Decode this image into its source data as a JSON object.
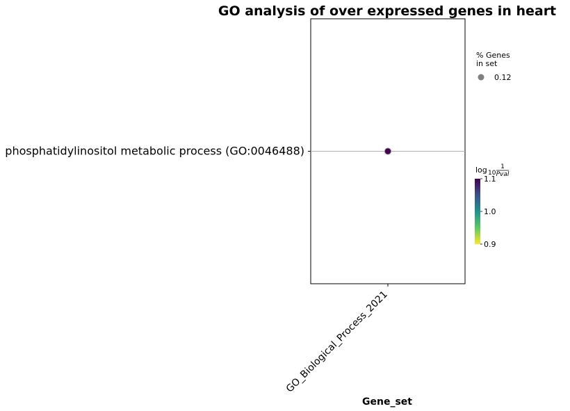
{
  "chart_data": {
    "type": "scatter",
    "title": "GO analysis of over expressed genes in heart",
    "xlabel": "Gene_set",
    "ylabel": "",
    "categories_x": [
      "GO_Biological_Process_2021"
    ],
    "categories_y": [
      "phosphatidylinositol metabolic process (GO:0046488)"
    ],
    "points": [
      {
        "x": "GO_Biological_Process_2021",
        "y": "phosphatidylinositol metabolic process (GO:0046488)",
        "pct_genes_in_set": 0.12,
        "log10_inv_pval": 1.1
      }
    ],
    "size_legend": {
      "title_line1": "% Genes",
      "title_line2": "in set",
      "entries": [
        {
          "label": "0.12",
          "value": 0.12
        }
      ]
    },
    "color_legend": {
      "title_prefix": "log",
      "title_sub": "10",
      "title_num": "1",
      "title_den": "Pval",
      "min": 0.9,
      "max": 1.1,
      "ticks": [
        "0.9",
        "1.0",
        "1.1"
      ],
      "colormap": "viridis_r"
    },
    "grid": "horizontal",
    "colors": {
      "viridis_top": "#440154",
      "viridis_mid": "#21918c",
      "viridis_bottom": "#fde725",
      "legend_marker": "#808080",
      "grid": "#b0b0b0"
    }
  }
}
